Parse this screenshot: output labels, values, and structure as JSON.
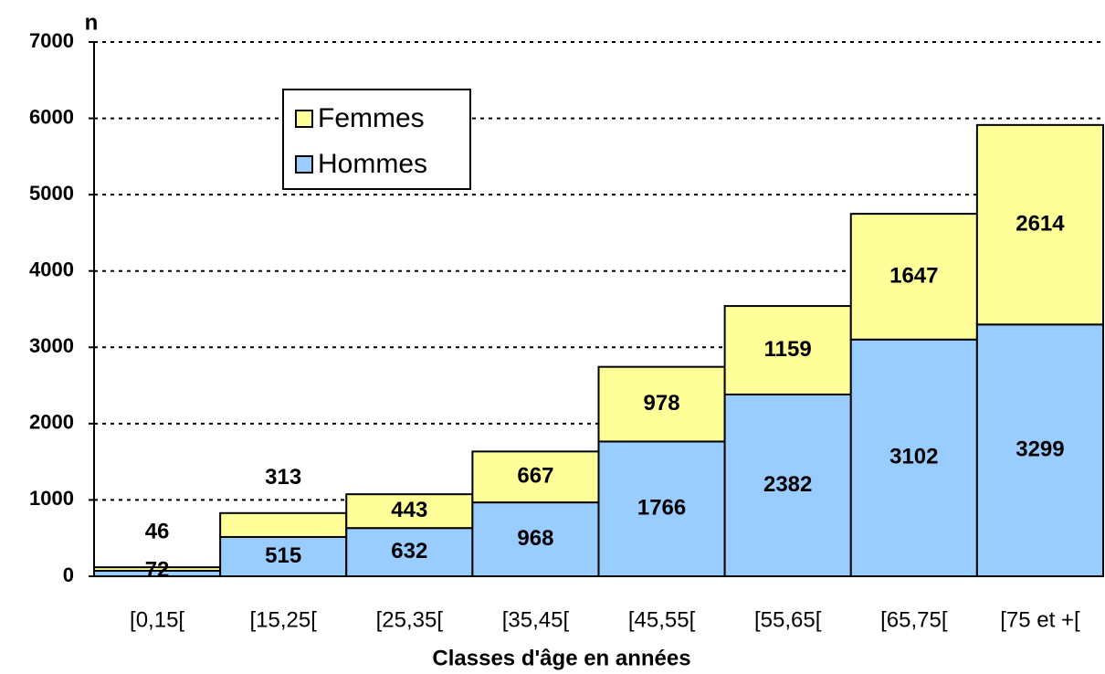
{
  "chart_data": {
    "type": "stacked_bar",
    "y_label": "n",
    "x_label": "Classes d'âge en années",
    "categories": [
      "[0,15[",
      "[15,25[",
      "[25,35[",
      "[35,45[",
      "[45,55[",
      "[55,65[",
      "[65,75[",
      "[75 et +["
    ],
    "series": [
      {
        "name": "Hommes",
        "color": "#99ccff",
        "values": [
          72,
          515,
          632,
          968,
          1766,
          2382,
          3102,
          3299
        ]
      },
      {
        "name": "Femmes",
        "color": "#ffff99",
        "values": [
          46,
          313,
          443,
          667,
          978,
          1159,
          1647,
          2614
        ]
      }
    ],
    "ylim": [
      0,
      7000
    ],
    "yticks": [
      0,
      1000,
      2000,
      3000,
      4000,
      5000,
      6000,
      7000
    ],
    "grid": true,
    "legend": "upper left"
  }
}
